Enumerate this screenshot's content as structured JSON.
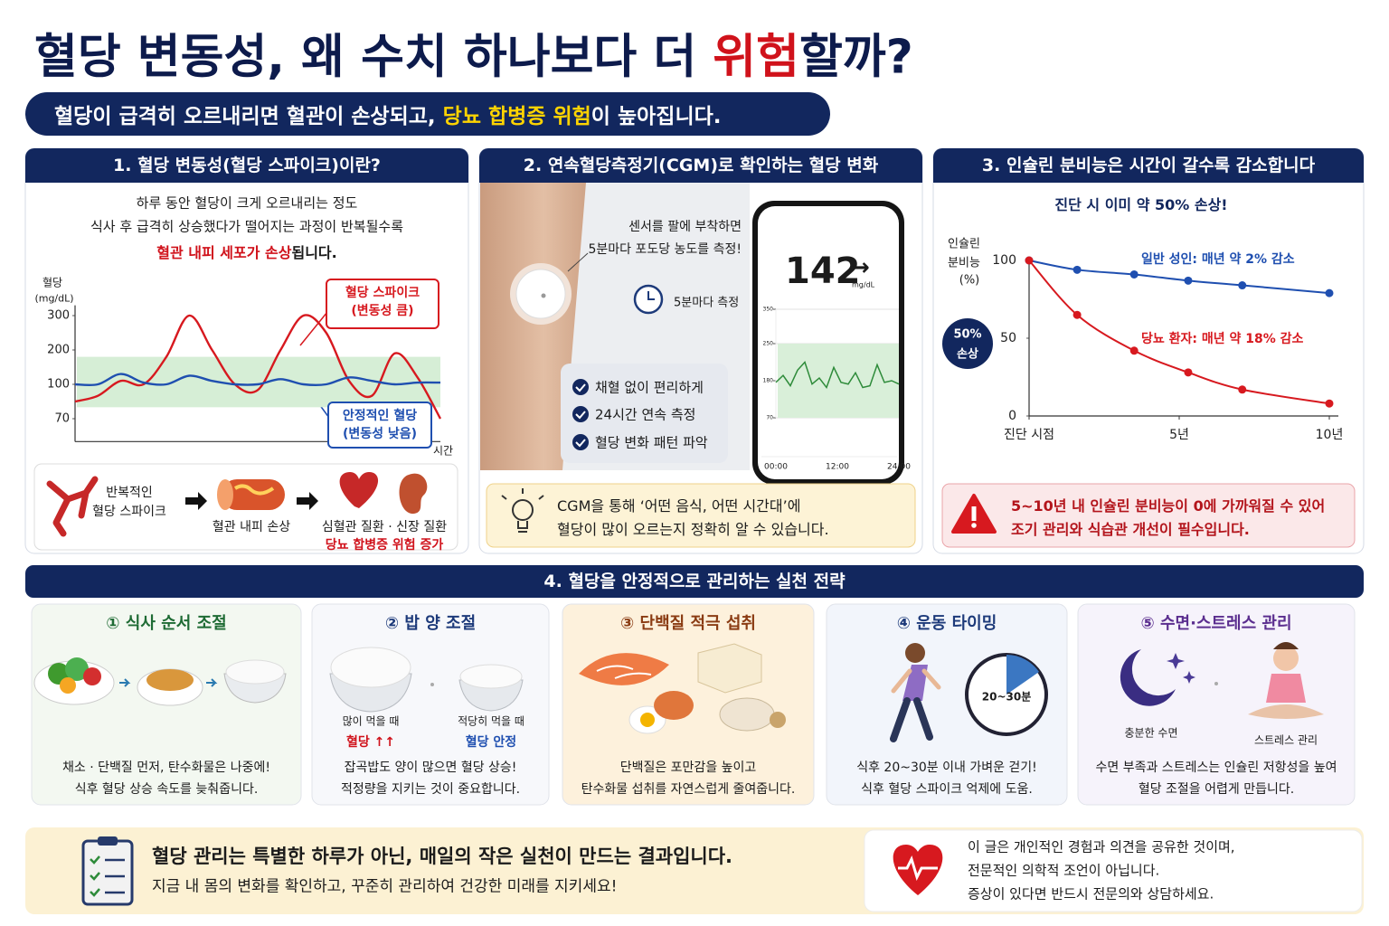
{
  "header": {
    "title": [
      "혈당 변동성, 왜 수치 하나보다 더 ",
      "위험",
      "할까?"
    ],
    "subtitle": [
      "혈당이 급격히 오르내리면 혈관이 손상되고, ",
      "당뇨 합병증 위험",
      "이 높아집니다."
    ]
  },
  "panel1": {
    "title": "1. 혈당 변동성(혈당 스파이크)이란?",
    "intro": [
      "하루 동안 혈당이 크게 오르내리는 정도",
      "식사 후 급격히 상승했다가 떨어지는 과정이 반복될수록"
    ],
    "intro_emphasis": [
      "혈관 내피 세포가 손상",
      "됩니다."
    ],
    "chart_data": {
      "type": "line",
      "y_label": [
        "혈당",
        "(mg/dL)"
      ],
      "x_label": "시간",
      "ylim": [
        50,
        330
      ],
      "yticks": [
        70,
        100,
        200,
        300
      ],
      "band": [
        80,
        180
      ],
      "band_color": "#d6eed6",
      "series": [
        {
          "color": "#d7191f",
          "values": [
            85,
            90,
            110,
            100,
            180,
            300,
            200,
            100,
            95,
            200,
            300,
            250,
            110,
            90,
            190,
            120,
            70
          ]
        },
        {
          "color": "#1f4fb0",
          "values": [
            100,
            100,
            130,
            105,
            100,
            125,
            110,
            100,
            100,
            115,
            100,
            100,
            120,
            110,
            100,
            105,
            105
          ]
        }
      ],
      "annotations": [
        [
          "혈당 스파이크",
          "(변동성 큼)"
        ],
        [
          "안정적인 혈당",
          "(변동성 낮음)"
        ]
      ]
    },
    "flow": {
      "steps": [
        [
          "반복적인",
          "혈당 스파이크"
        ],
        [
          "혈관 내피 손상"
        ],
        [
          "심혈관 질환 · 신장 질환"
        ]
      ],
      "result": "당뇨 합병증 위험 증가"
    }
  },
  "panel2": {
    "title": "2. 연속혈당측정기(CGM)로 확인하는 혈당 변화",
    "sensor_note": [
      "센서를 팔에 부착하면",
      "5분마다 포도당 농도를 측정!"
    ],
    "clock_label": "5분마다 측정",
    "checks": [
      "채혈 없이 편리하게",
      "24시간 연속 측정",
      "혈당 변화 패턴 파악"
    ],
    "phone": {
      "reading": 142,
      "trend": "→",
      "unit": "mg/dL"
    },
    "chart_data": {
      "type": "line",
      "ylim": [
        70,
        350
      ],
      "yticks": [
        70,
        180,
        250,
        350
      ],
      "band": [
        70,
        250
      ],
      "band_color": "#d9efd9",
      "xticks": [
        "00:00",
        "12:00",
        "24:00"
      ],
      "series": [
        {
          "color": "#2e8b3a",
          "values": [
            175,
            190,
            165,
            200,
            215,
            170,
            185,
            160,
            205,
            175,
            170,
            195,
            160,
            165,
            210,
            175,
            180,
            170
          ]
        }
      ]
    },
    "tip": [
      "CGM을 통해 ‘어떤 음식, 어떤 시간대’에",
      "혈당이 많이 오르는지 정확히 알 수 있습니다."
    ]
  },
  "panel3": {
    "title": "3. 인슐린 분비능은 시간이 갈수록 감소합니다",
    "chart_data": {
      "type": "line",
      "subtitle": "진단 시 이미 약 50% 손상!",
      "y_label": [
        "인슐린",
        "분비능",
        "(%)"
      ],
      "badge": [
        "50%",
        "손상"
      ],
      "xlim": [
        0,
        10
      ],
      "xticks": [
        {
          "value": 0,
          "label": "진단 시점"
        },
        {
          "value": 5,
          "label": "5년"
        },
        {
          "value": 10,
          "label": "10년"
        }
      ],
      "ylim": [
        0,
        100
      ],
      "yticks": [
        0,
        50,
        100
      ],
      "x": [
        0,
        1.6,
        3.5,
        5.3,
        7.1,
        10
      ],
      "series": [
        {
          "name": "일반 성인: 매년 약 2% 감소",
          "color": "#1f4fb0",
          "values": [
            100,
            94,
            91,
            87,
            84,
            79
          ]
        },
        {
          "name": "당뇨 환자: 매년 약 18% 감소",
          "color": "#d7191f",
          "values": [
            100,
            65,
            42,
            28,
            17,
            8
          ]
        }
      ]
    },
    "warning": [
      "5~10년 내 인슐린 분비능이 0에 가까워질 수 있어",
      "조기 관리와 식습관 개선이 필수입니다."
    ]
  },
  "panel4": {
    "title": "4. 혈당을 안정적으로 관리하는 실천 전략",
    "cards": [
      {
        "title": "① 식사 순서 조절",
        "text": [
          "채소 · 단백질 먼저, 탄수화물은 나중에!",
          "식후 혈당 상승 속도를 늦춰줍니다."
        ]
      },
      {
        "title": "② 밥 양 조절",
        "captions": [
          [
            "많이 먹을 때",
            "혈당 ↑↑"
          ],
          [
            "적당히 먹을 때",
            "혈당 안정"
          ]
        ],
        "text": [
          "잡곡밥도 양이 많으면 혈당 상승!",
          "적정량을 지키는 것이 중요합니다."
        ]
      },
      {
        "title": "③ 단백질 적극 섭취",
        "text": [
          "단백질은 포만감을 높이고",
          "탄수화물 섭취를 자연스럽게 줄여줍니다."
        ]
      },
      {
        "title": "④ 운동 타이밍",
        "clock": "20~30분",
        "text": [
          "식후 20~30분 이내 가벼운 걷기!",
          "식후 혈당 스파이크 억제에 도움."
        ]
      },
      {
        "title": "⑤ 수면·스트레스 관리",
        "captions": [
          "충분한 수면",
          "스트레스 관리"
        ],
        "text": [
          "수면 부족과 스트레스는 인슐린 저항성을 높여",
          "혈당 조절을 어렵게 만듭니다."
        ]
      }
    ]
  },
  "footer": {
    "message": [
      "혈당 관리는 특별한 하루가 아닌, 매일의 작은 실천이 만드는 결과입니다.",
      "지금 내 몸의 변화를 확인하고, 꾸준히 관리하여 건강한 미래를 지키세요!"
    ],
    "disclaimer": [
      "이 글은 개인적인 경험과 의견을 공유한 것이며,",
      "전문적인 의학적 조언이 아닙니다.",
      "증상이 있다면 반드시 전문의와 상담하세요."
    ]
  }
}
